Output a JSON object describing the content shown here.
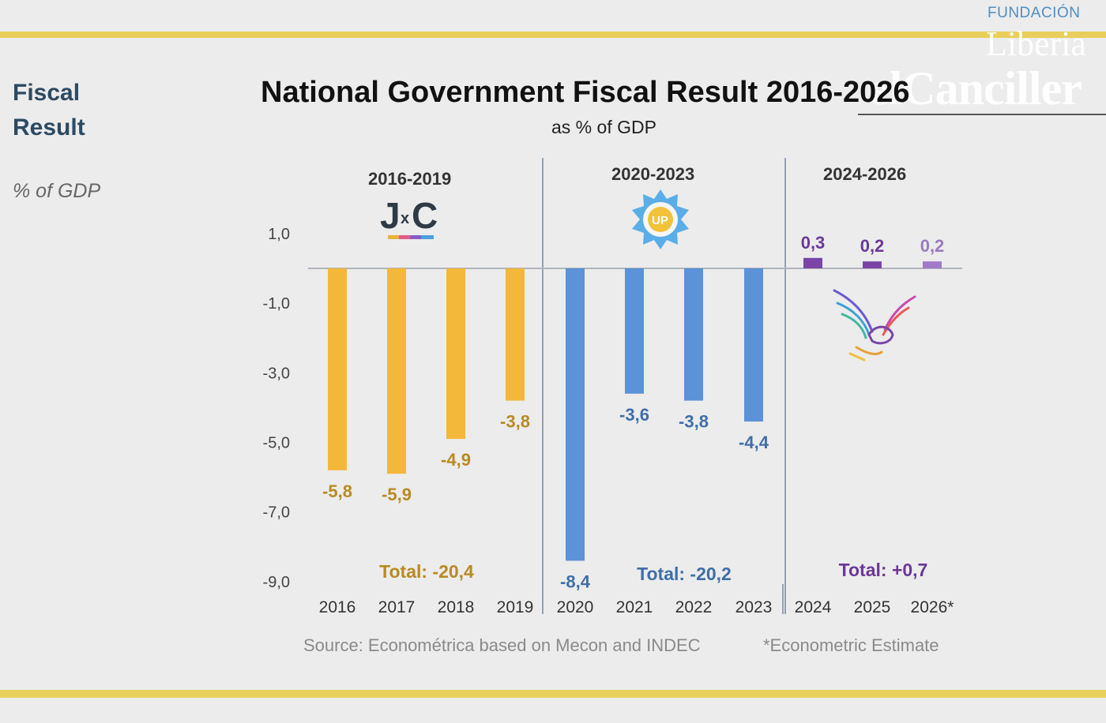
{
  "header": {
    "brand_small": "FUNDACIÓN",
    "brand_big": "Liberia",
    "watermark": "elCanciller"
  },
  "sidebar": {
    "title_line1": "Fiscal",
    "title_line2": "Result",
    "unit": "% of GDP"
  },
  "periods": [
    {
      "label": "2016-2019",
      "logo": "JxC",
      "total": "Total: -20,4",
      "color": "#f3b73a",
      "text_color": "#b98a22"
    },
    {
      "label": "2020-2023",
      "logo": "UP",
      "total": "Total: -20,2",
      "color": "#5b92d8",
      "text_color": "#3f6ea8"
    },
    {
      "label": "2024-2026",
      "logo": "eagle",
      "total": "Total: +0,7",
      "color": "#7a45a6",
      "text_color": "#6a3897"
    }
  ],
  "chart_data": {
    "type": "bar",
    "title": "National Government Fiscal Result 2016-2026",
    "subtitle": "as % of GDP",
    "ylabel": "% of GDP",
    "ylim": [
      -9.0,
      1.0
    ],
    "yticks": [
      "1,0",
      "-1,0",
      "-3,0",
      "-5,0",
      "-7,0",
      "-9,0"
    ],
    "ytick_values": [
      1.0,
      -1.0,
      -3.0,
      -5.0,
      -7.0,
      -9.0
    ],
    "categories": [
      "2016",
      "2017",
      "2018",
      "2019",
      "2020",
      "2021",
      "2022",
      "2023",
      "2024",
      "2025",
      "2026*"
    ],
    "values": [
      -5.8,
      -5.9,
      -4.9,
      -3.8,
      -8.4,
      -3.6,
      -3.8,
      -4.4,
      0.3,
      0.2,
      0.2
    ],
    "value_labels": [
      "-5,8",
      "-5,9",
      "-4,9",
      "-3,8",
      "-8,4",
      "-3,6",
      "-3,8",
      "-4,4",
      "0,3",
      "0,2",
      "0,2"
    ],
    "period_index": [
      0,
      0,
      0,
      0,
      1,
      1,
      1,
      1,
      2,
      2,
      2
    ],
    "source": "Source: Econométrica based on Mecon and INDEC",
    "note": "*Econometric Estimate"
  }
}
